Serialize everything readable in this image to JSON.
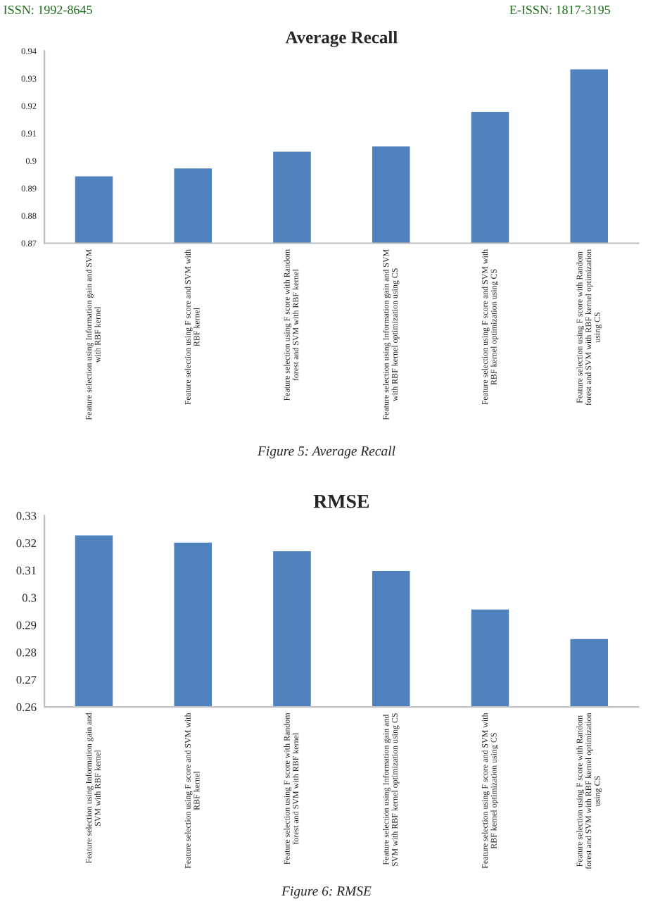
{
  "chart_data": [
    {
      "type": "bar",
      "title": "Average Recall",
      "categories": [
        "Feature selection using Information gain and SVM\nwith RBF kernel",
        "Feature selection using F score and SVM with\nRBF kernel",
        "Feature selection using F score with Random\nforest and SVM with RBF kernel",
        "Feature selection using Information gain and SVM\nwith RBF kernel optimization using CS",
        "Feature selection using F score and SVM with\nRBF kernel optimization using CS",
        "Feature selection using F score with Random\nforest and SVM with RBF kernel optimization\nusing CS"
      ],
      "values": [
        0.8947,
        0.8976,
        0.9037,
        0.9056,
        0.9182,
        0.9337
      ],
      "color": "#4f81bd",
      "ylim": [
        0.87,
        0.94
      ],
      "yticks": [
        0.87,
        0.88,
        0.89,
        0.9,
        0.91,
        0.92,
        0.93,
        0.94
      ],
      "grid": false,
      "annotations": [
        "ISSN: 1992-8645",
        "E-ISSN: 1817-3195",
        "Figure 5: Average Recall"
      ]
    },
    {
      "type": "bar",
      "title": "RMSE",
      "categories": [
        "Feature selection using Information gain and\nSVM with RBF kernel",
        "Feature selection using F score and SVM with\nRBF kernel",
        "Feature selection using F score with Random\nforest and SVM with RBF kernel",
        "Feature selection using Information gain and\nSVM with RBF kernel optimization using CS",
        "Feature selection using F score and SVM with\nRBF kernel optimization using CS",
        "Feature selection using F score with Random\nforest and SVM with RBF kernel optimization\nusing CS"
      ],
      "values": [
        0.3231,
        0.3205,
        0.3173,
        0.3101,
        0.296,
        0.2852
      ],
      "color": "#4f81bd",
      "ylim": [
        0.26,
        0.33
      ],
      "yticks": [
        0.26,
        0.27,
        0.28,
        0.29,
        0.3,
        0.31,
        0.32,
        0.33
      ],
      "grid": false,
      "annotations": [
        "Figure 6: RMSE"
      ]
    }
  ]
}
